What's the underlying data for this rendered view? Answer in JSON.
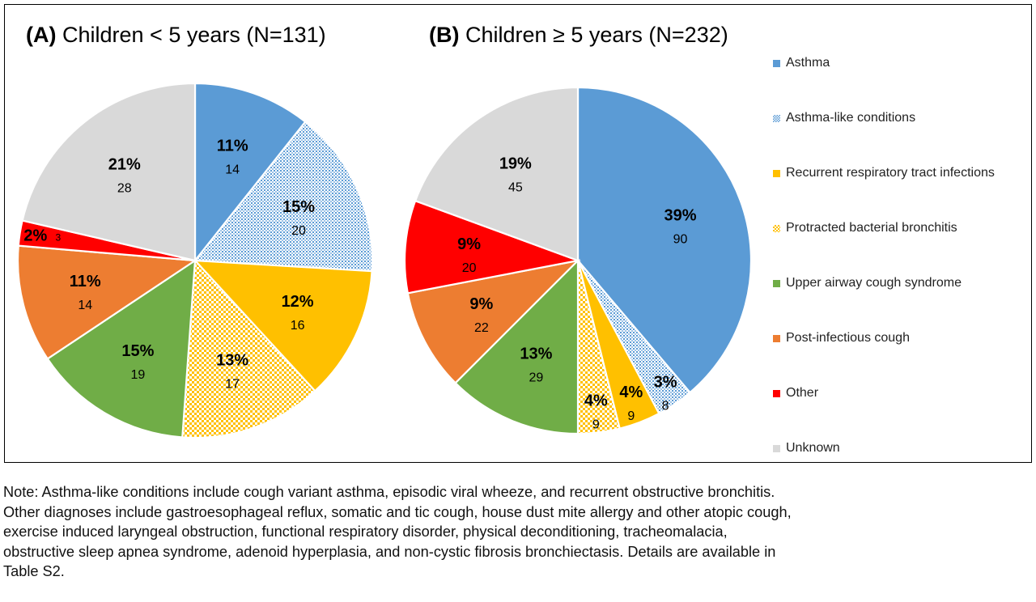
{
  "chart_data": [
    {
      "type": "pie",
      "title_prefix": "(A)",
      "title_text": "Children < 5 years (N=131)",
      "slices": [
        {
          "label": "Asthma",
          "percent_label": "11%",
          "count": 14
        },
        {
          "label": "Asthma-like conditions",
          "percent_label": "15%",
          "count": 20
        },
        {
          "label": "Recurrent respiratory tract infections",
          "percent_label": "12%",
          "count": 16
        },
        {
          "label": "Protracted bacterial bronchitis",
          "percent_label": "13%",
          "count": 17
        },
        {
          "label": "Upper airway cough syndrome",
          "percent_label": "15%",
          "count": 19
        },
        {
          "label": "Post-infectious cough",
          "percent_label": "11%",
          "count": 14
        },
        {
          "label": "Other",
          "percent_label": "2%",
          "count": 3
        },
        {
          "label": "Unknown",
          "percent_label": "21%",
          "count": 28
        }
      ]
    },
    {
      "type": "pie",
      "title_prefix": "(B)",
      "title_text": "Children ≥ 5 years (N=232)",
      "slices": [
        {
          "label": "Asthma",
          "percent_label": "39%",
          "count": 90
        },
        {
          "label": "Asthma-like conditions",
          "percent_label": "3%",
          "count": 8
        },
        {
          "label": "Recurrent respiratory tract infections",
          "percent_label": "4%",
          "count": 9
        },
        {
          "label": "Protracted bacterial bronchitis",
          "percent_label": "4%",
          "count": 9
        },
        {
          "label": "Upper airway cough syndrome",
          "percent_label": "13%",
          "count": 29
        },
        {
          "label": "Post-infectious cough",
          "percent_label": "9%",
          "count": 22
        },
        {
          "label": "Other",
          "percent_label": "9%",
          "count": 20
        },
        {
          "label": "Unknown",
          "percent_label": "19%",
          "count": 45
        }
      ]
    }
  ],
  "legend": [
    {
      "label": "Asthma",
      "color": "#5b9bd5",
      "pattern": "solid"
    },
    {
      "label": "Asthma-like conditions",
      "color": "#5b9bd5",
      "pattern": "dots"
    },
    {
      "label": "Recurrent respiratory tract infections",
      "color": "#ffc000",
      "pattern": "solid"
    },
    {
      "label": "Protracted bacterial bronchitis",
      "color": "#ffc000",
      "pattern": "check"
    },
    {
      "label": "Upper airway cough syndrome",
      "color": "#70ad47",
      "pattern": "solid"
    },
    {
      "label": "Post-infectious cough",
      "color": "#ed7d31",
      "pattern": "solid"
    },
    {
      "label": "Other",
      "color": "#ff0000",
      "pattern": "solid"
    },
    {
      "label": "Unknown",
      "color": "#d9d9d9",
      "pattern": "solid"
    }
  ],
  "note": [
    "Note: Asthma-like conditions include cough variant asthma, episodic viral wheeze, and recurrent obstructive bronchitis.",
    "Other diagnoses include gastroesophageal reflux, somatic and tic cough, house dust mite allergy and other atopic cough,",
    "exercise induced laryngeal obstruction, functional respiratory disorder, physical deconditioning, tracheomalacia,",
    "obstructive sleep apnea syndrome, adenoid hyperplasia, and non-cystic fibrosis bronchiectasis. Details are available in",
    "Table S2."
  ]
}
